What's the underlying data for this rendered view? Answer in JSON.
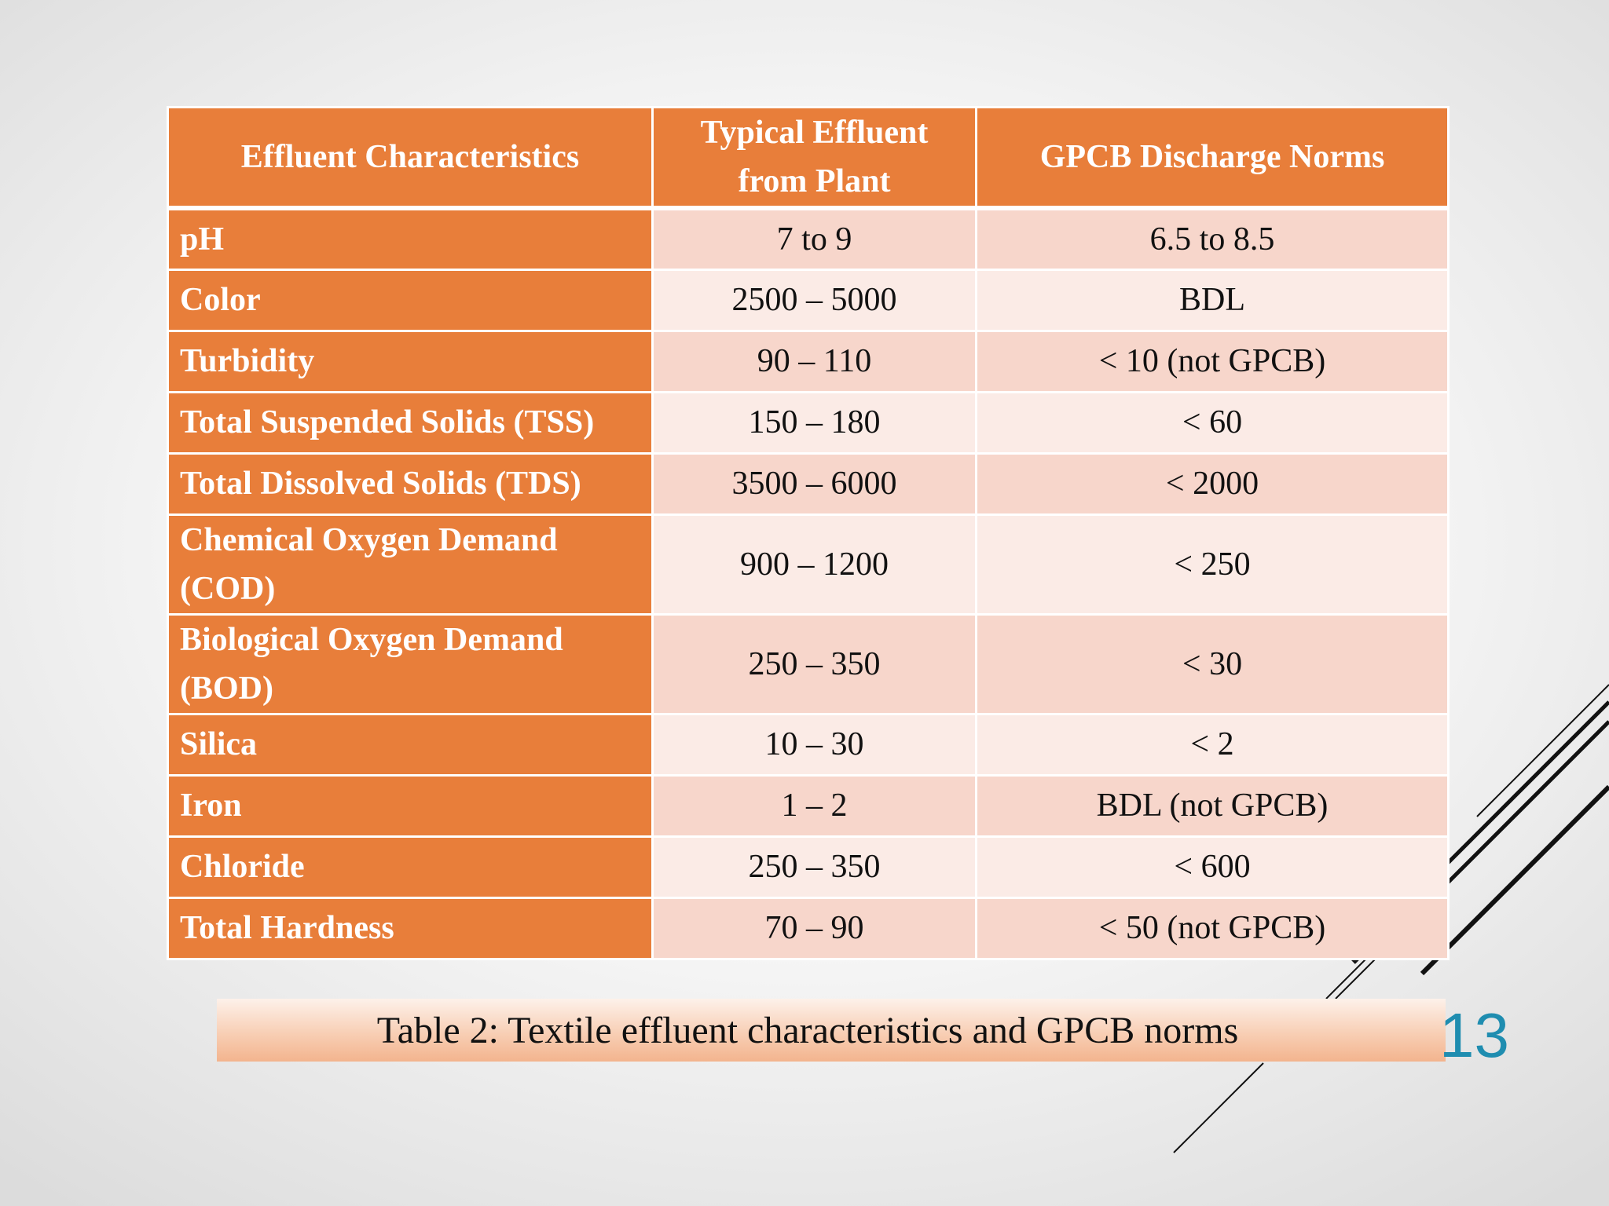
{
  "table": {
    "headers": [
      "Effluent Characteristics",
      "Typical Effluent from Plant",
      "GPCB Discharge Norms"
    ],
    "rows": [
      {
        "parameter": "pH",
        "typical": "7 to 9",
        "norm": "6.5 to 8.5"
      },
      {
        "parameter": "Color",
        "typical": "2500 – 5000",
        "norm": "BDL"
      },
      {
        "parameter": "Turbidity",
        "typical": "90 – 110",
        "norm": "< 10 (not GPCB)"
      },
      {
        "parameter": "Total Suspended Solids (TSS)",
        "typical": "150 – 180",
        "norm": "< 60"
      },
      {
        "parameter": "Total Dissolved Solids (TDS)",
        "typical": "3500 – 6000",
        "norm": "< 2000"
      },
      {
        "parameter": "Chemical Oxygen Demand (COD)",
        "typical": "900 – 1200",
        "norm": "< 250"
      },
      {
        "parameter": "Biological Oxygen Demand (BOD)",
        "typical": "250 – 350",
        "norm": "< 30"
      },
      {
        "parameter": "Silica",
        "typical": "10 – 30",
        "norm": "< 2"
      },
      {
        "parameter": "Iron",
        "typical": "1 – 2",
        "norm": "BDL (not GPCB)"
      },
      {
        "parameter": "Chloride",
        "typical": "250 – 350",
        "norm": "< 600"
      },
      {
        "parameter": "Total Hardness",
        "typical": "70 – 90",
        "norm": "< 50 (not GPCB)"
      }
    ]
  },
  "caption": "Table 2: Textile effluent characteristics and GPCB norms",
  "slide_number": "13",
  "colors": {
    "header_bg": "#e87e3a",
    "row_odd": "#f7d6cb",
    "row_even": "#fbebe6",
    "slide_number": "#1f8db0"
  }
}
